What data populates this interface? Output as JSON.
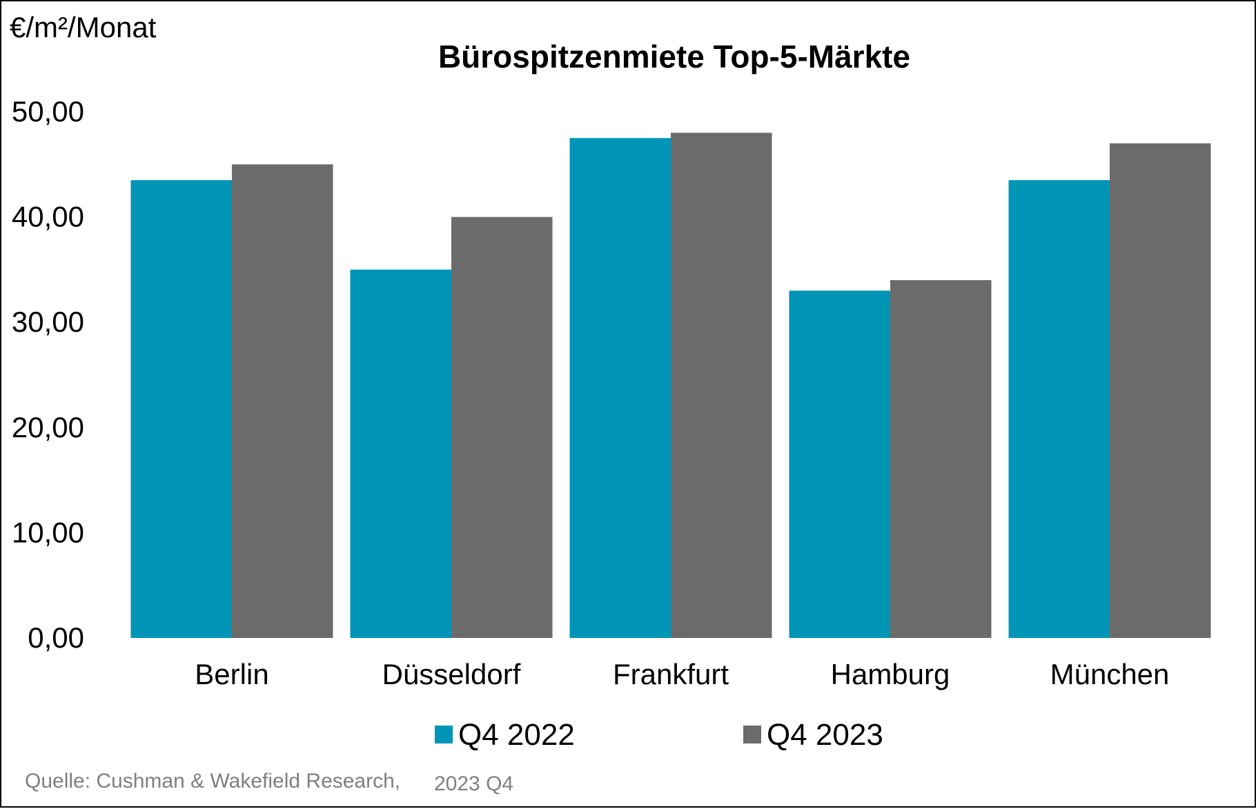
{
  "chart_data": {
    "type": "bar",
    "title": "Bürospitzenmiete Top-5-Märkte",
    "ylabel": "€/m²/Monat",
    "xlabel": "",
    "categories": [
      "Berlin",
      "Düsseldorf",
      "Frankfurt",
      "Hamburg",
      "München"
    ],
    "series": [
      {
        "name": "Q4 2022",
        "color": "#0095B6",
        "values": [
          43.5,
          35.0,
          47.5,
          33.0,
          43.5
        ]
      },
      {
        "name": "Q4 2023",
        "color": "#6A6B6A",
        "values": [
          45.0,
          40.0,
          48.0,
          34.0,
          47.0
        ]
      }
    ],
    "ylim": [
      0,
      50
    ],
    "yticks": [
      "0,00",
      "10,00",
      "20,00",
      "30,00",
      "40,00",
      "50,00"
    ],
    "grid": false,
    "legend_position": "bottom",
    "source": {
      "label": "Quelle: Cushman & Wakefield Research,",
      "period": "2023 Q4"
    }
  }
}
